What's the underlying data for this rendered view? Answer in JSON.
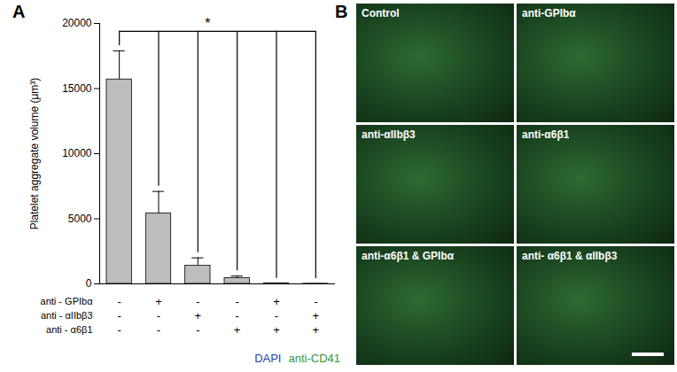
{
  "chart_data": {
    "type": "bar",
    "panel": "A",
    "ylabel": "Platelet aggregate volume (μm³)",
    "categories": [
      null,
      null,
      null,
      null,
      null,
      null
    ],
    "values": [
      15700,
      5400,
      1400,
      450,
      30,
      10
    ],
    "errors": [
      2200,
      1700,
      600,
      150,
      0,
      0
    ],
    "color": "#bdbdbd",
    "ylim": [
      0,
      20000
    ],
    "yticks": [
      0,
      5000,
      10000,
      15000,
      20000
    ],
    "tick_labels": "y",
    "annotations": [
      "*"
    ],
    "treatment_table": [
      {
        "label": "anti - GPIbα",
        "marks": [
          "-",
          "+",
          "-",
          "-",
          "+",
          "-"
        ]
      },
      {
        "label": "anti - αIIbβ3",
        "marks": [
          "-",
          "-",
          "+",
          "-",
          "-",
          "+"
        ]
      },
      {
        "label": "anti - α6β1",
        "marks": [
          "-",
          "-",
          "-",
          "+",
          "+",
          "+"
        ]
      }
    ]
  },
  "panel_b": {
    "label": "B",
    "stain_legend": [
      {
        "text": "DAPI",
        "color": "#2b3ea8"
      },
      {
        "text": "anti-CD41",
        "color": "#2f9a3a"
      }
    ],
    "images": [
      "Control",
      "anti-GPIbα",
      "anti-αIIbβ3",
      "anti-α6β1",
      "anti-α6β1 & GPIbα",
      "anti- α6β1 & αIIbβ3"
    ]
  }
}
